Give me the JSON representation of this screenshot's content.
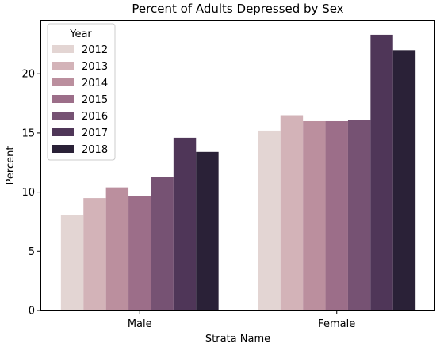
{
  "chart_data": {
    "type": "bar",
    "title": "Percent of Adults Depressed by Sex",
    "xlabel": "Strata Name",
    "ylabel": "Percent",
    "categories": [
      "Male",
      "Female"
    ],
    "ylim": [
      0,
      24.5
    ],
    "yticks": [
      0,
      5,
      10,
      15,
      20
    ],
    "grid": false,
    "legend": {
      "title": "Year",
      "placement": "top-left"
    },
    "series": [
      {
        "name": "2012",
        "color": "#e3d5d3",
        "values": [
          8.1,
          15.2
        ]
      },
      {
        "name": "2013",
        "color": "#d3b3b8",
        "values": [
          9.5,
          16.5
        ]
      },
      {
        "name": "2014",
        "color": "#bb8f9e",
        "values": [
          10.4,
          16.0
        ]
      },
      {
        "name": "2015",
        "color": "#9c6e89",
        "values": [
          9.7,
          16.0
        ]
      },
      {
        "name": "2016",
        "color": "#765273",
        "values": [
          11.3,
          16.1
        ]
      },
      {
        "name": "2017",
        "color": "#4f3658",
        "values": [
          14.6,
          23.3
        ]
      },
      {
        "name": "2018",
        "color": "#2a2137",
        "values": [
          13.4,
          22.0
        ]
      }
    ]
  }
}
